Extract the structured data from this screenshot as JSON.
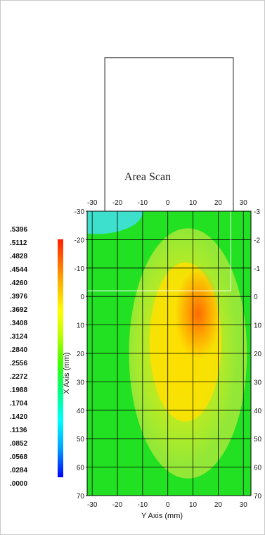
{
  "chart_data": {
    "type": "heatmap",
    "title": "Area Scan",
    "xlabel": "Y Axis (mm)",
    "ylabel": "X Axis (mm)",
    "x_ticks": [
      "-30",
      "-20",
      "-10",
      "0",
      "10",
      "20",
      "30"
    ],
    "y_ticks_left": [
      "-30",
      "-20",
      "-10",
      "0",
      "10",
      "20",
      "30",
      "40",
      "50",
      "60",
      "70"
    ],
    "y_ticks_right": [
      "-3",
      "-2",
      "-1",
      "0",
      "10",
      "20",
      "30",
      "40",
      "50",
      "60",
      "70"
    ],
    "xlim": [
      -32,
      33
    ],
    "ylim": [
      -30,
      70
    ],
    "grid": true,
    "peak": {
      "x": 12,
      "y": 0,
      "value": 0.5396
    },
    "colorbar": {
      "labels": [
        ".5396",
        ".5112",
        ".4828",
        ".4544",
        ".4260",
        ".3976",
        ".3692",
        ".3408",
        ".3124",
        ".2840",
        ".2556",
        ".2272",
        ".1988",
        ".1704",
        ".1420",
        ".1136",
        ".0852",
        ".0568",
        ".0284",
        ".0000"
      ],
      "max": 0.5396,
      "min": 0.0
    },
    "overlay_regions": [
      {
        "name": "scan-frame",
        "x_range": [
          -25,
          26
        ],
        "y_range": [
          -84,
          -22
        ]
      },
      {
        "name": "inner-box",
        "x_range": [
          -32,
          25
        ],
        "y_range": [
          -30,
          -2
        ]
      }
    ]
  }
}
